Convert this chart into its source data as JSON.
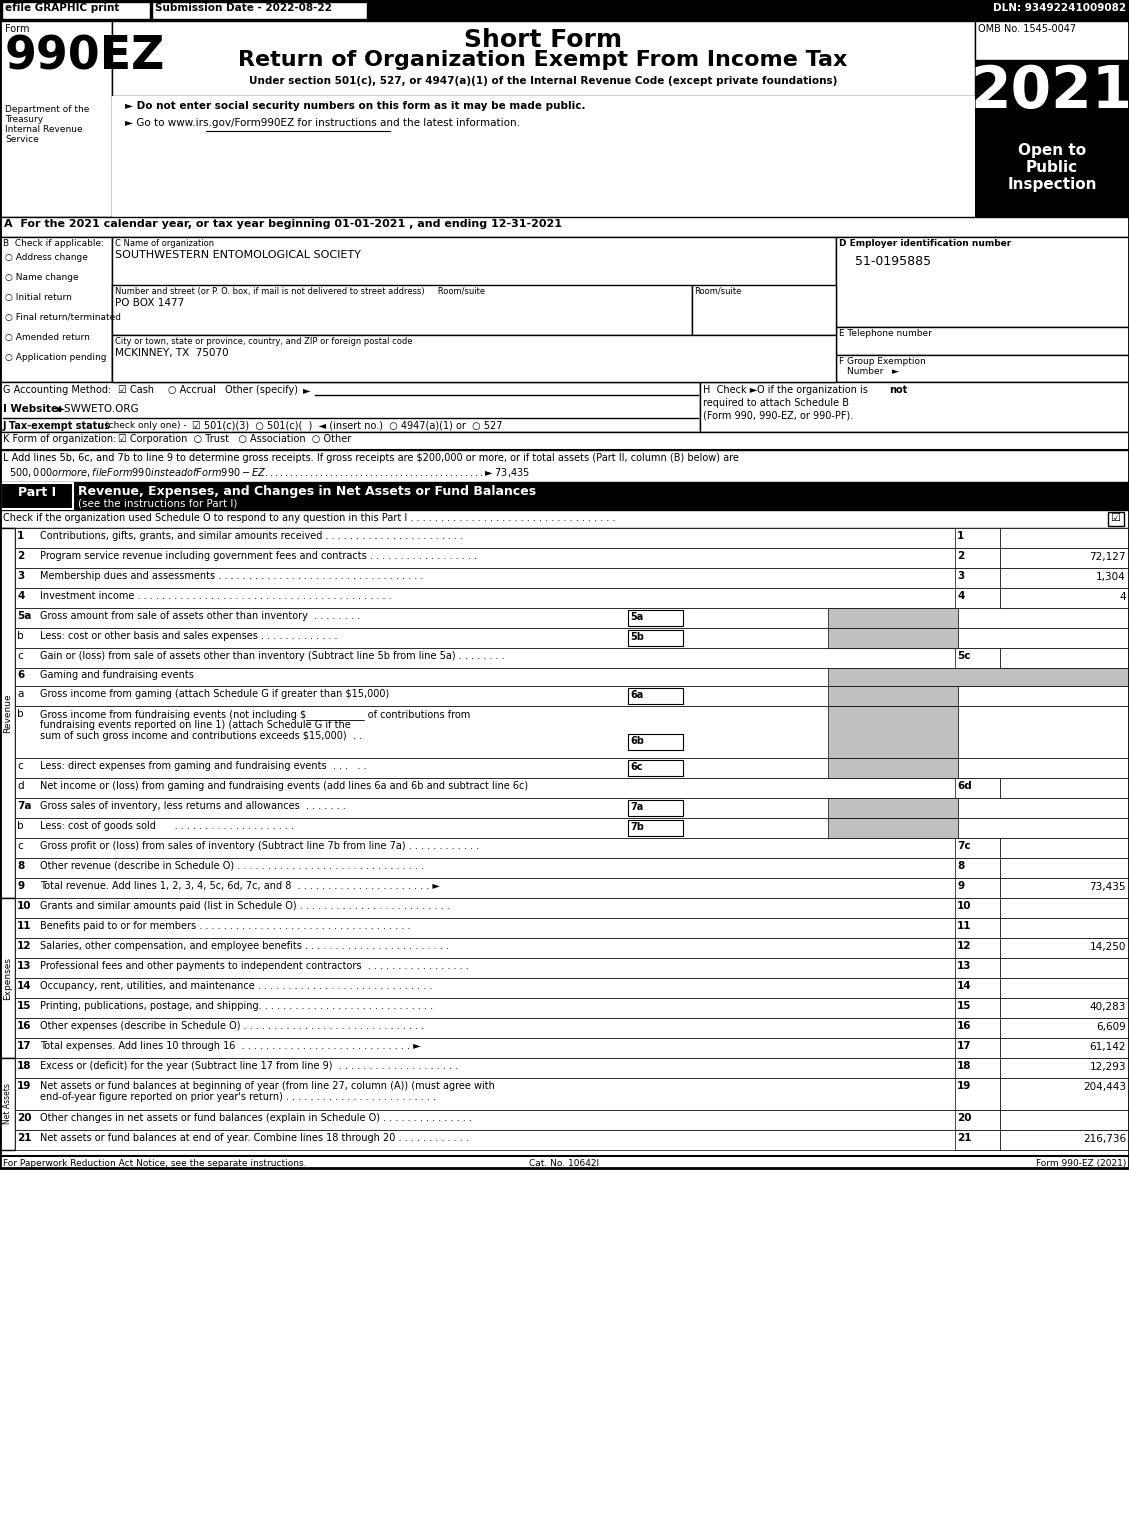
{
  "efile_label": "efile GRAPHIC print",
  "submission_date": "Submission Date - 2022-08-22",
  "dln": "DLN: 93492241009082",
  "omb": "OMB No. 1545-0047",
  "form_label": "Form",
  "form_number": "990EZ",
  "dept_lines": [
    "Department of the",
    "Treasury",
    "Internal Revenue",
    "Service"
  ],
  "title_line1": "Short Form",
  "title_line2": "Return of Organization Exempt From Income Tax",
  "subtitle": "Under section 501(c), 527, or 4947(a)(1) of the Internal Revenue Code (except private foundations)",
  "bullet1": "► Do not enter social security numbers on this form as it may be made public.",
  "bullet2": "► Go to www.irs.gov/Form990EZ for instructions and the latest information.",
  "year": "2021",
  "open_to_lines": [
    "Open to",
    "Public",
    "Inspection"
  ],
  "section_a": "A  For the 2021 calendar year, or tax year beginning 01-01-2021 , and ending 12-31-2021",
  "check_items": [
    "Address change",
    "Name change",
    "Initial return",
    "Final return/terminated",
    "Amended return",
    "Application pending"
  ],
  "org_name": "SOUTHWESTERN ENTOMOLOGICAL SOCIETY",
  "address_line1_label": "Number and street (or P. O. box, if mail is not delivered to street address)     Room/suite",
  "address": "PO BOX 1477",
  "city_label": "City or town, state or province, country, and ZIP or foreign postal code",
  "city": "MCKINNEY, TX  75070",
  "ein_label": "D Employer identification number",
  "ein": "51-0195885",
  "phone_label": "E Telephone number",
  "group_label": "F Group Exemption",
  "group_number": "Number   ►",
  "accounting_label": "G Accounting Method:",
  "h_text_line1": "H  Check ►  O if the organization is not",
  "h_text_line2": "required to attach Schedule B",
  "h_text_line3": "(Form 990, 990-EZ, or 990-PF).",
  "website_label": "I Website: ►SWWETO.ORG",
  "tax_exempt_line": "J Tax-exempt status (check only one) -  ☑ 501(c)(3)  ○ 501(c)(  )  ◄ (insert no.)  ○ 4947(a)(1) or  ○ 527",
  "form_k_line": "K Form of organization:   ☑ Corporation  ○ Trust   ○ Association  ○ Other",
  "section_l_line1": "L Add lines 5b, 6c, and 7b to line 9 to determine gross receipts. If gross receipts are $200,000 or more, or if total assets (Part II, column (B) below) are",
  "section_l_line2": "  $500,000 or more, file Form 990 instead of Form 990-EZ . . . . . . . . . . . . . . . . . . . . . . . . . . . . . . . . . . . . . . . . . . . . ► $ 73,435",
  "part1_title": "Revenue, Expenses, and Changes in Net Assets or Fund Balances",
  "part1_sub": "(see the instructions for Part I)",
  "part1_check_line": "Check if the organization used Schedule O to respond to any question in this Part I . . . . . . . . . . . . . . . . . . . . . . . . . . . . . . . . . .",
  "footer_left": "For Paperwork Reduction Act Notice, see the separate instructions.",
  "footer_cat": "Cat. No. 10642I",
  "footer_right": "Form 990-EZ (2021)"
}
